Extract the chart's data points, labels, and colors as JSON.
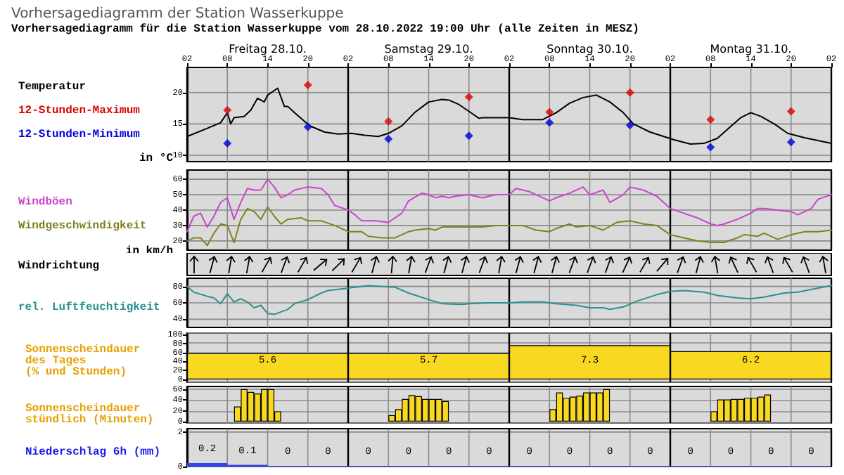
{
  "chart_data": [
    {
      "type": "line",
      "title": "Vorhersagediagramm der Station Wasserkuppe",
      "subtitle": "Vorhersagediagramm für die Station Wasserkuppe vom 28.10.2022 19:00 Uhr (alle Zeiten in MESZ)",
      "annotations": [
        "Freitag 28.10.",
        "Samstag 29.10.",
        "Sonntag 30.10.",
        "Montag 31.10."
      ],
      "ylabel": "in °C",
      "xlim": [
        "2022-10-28T02:00",
        "2022-11-01T02:00"
      ],
      "xticks": [
        {
          "value": "2022-10-28T02:00",
          "label": "02"
        },
        {
          "value": "2022-10-28T08:00",
          "label": "08"
        },
        {
          "value": "2022-10-28T14:00",
          "label": "14"
        },
        {
          "value": "2022-10-28T20:00",
          "label": "20"
        },
        {
          "value": "2022-10-29T02:00",
          "label": "02"
        },
        {
          "value": "2022-10-29T08:00",
          "label": "08"
        },
        {
          "value": "2022-10-29T14:00",
          "label": "14"
        },
        {
          "value": "2022-10-29T20:00",
          "label": "20"
        },
        {
          "value": "2022-10-30T02:00",
          "label": "02"
        },
        {
          "value": "2022-10-30T08:00",
          "label": "08"
        },
        {
          "value": "2022-10-30T14:00",
          "label": "14"
        },
        {
          "value": "2022-10-30T20:00",
          "label": "20"
        },
        {
          "value": "2022-10-31T02:00",
          "label": "02"
        },
        {
          "value": "2022-10-31T08:00",
          "label": "08"
        },
        {
          "value": "2022-10-31T14:00",
          "label": "14"
        },
        {
          "value": "2022-10-31T20:00",
          "label": "20"
        },
        {
          "value": "2022-11-01T02:00",
          "label": "02"
        }
      ],
      "ylim": [
        9,
        24
      ],
      "yticks": [
        10,
        15,
        20
      ],
      "grid": true,
      "legend": "left",
      "marker": "none",
      "line_style": "solid",
      "series": [
        {
          "name": "Temperatur",
          "color": "#000000",
          "x": [
            "2022-10-28T02:00",
            "2022-10-28T05:00",
            "2022-10-28T07:00",
            "2022-10-28T08:00",
            "2022-10-28T08:30",
            "2022-10-28T09:00",
            "2022-10-28T10:30",
            "2022-10-28T11:30",
            "2022-10-28T12:30",
            "2022-10-28T13:30",
            "2022-10-28T14:00",
            "2022-10-28T15:30",
            "2022-10-28T16:30",
            "2022-10-28T17:00",
            "2022-10-28T18:00",
            "2022-10-28T19:30",
            "2022-10-28T20:30",
            "2022-10-28T22:30",
            "2022-10-29T00:30",
            "2022-10-29T02:30",
            "2022-10-29T04:30",
            "2022-10-29T06:30",
            "2022-10-29T08:00",
            "2022-10-29T10:00",
            "2022-10-29T12:00",
            "2022-10-29T14:00",
            "2022-10-29T16:00",
            "2022-10-29T17:00",
            "2022-10-29T18:30",
            "2022-10-29T20:00",
            "2022-10-29T21:30",
            "2022-10-29T22:00",
            "2022-10-30T02:00",
            "2022-10-30T04:00",
            "2022-10-30T07:00",
            "2022-10-30T09:00",
            "2022-10-30T11:00",
            "2022-10-30T13:00",
            "2022-10-30T15:00",
            "2022-10-30T17:00",
            "2022-10-30T19:00",
            "2022-10-30T20:30",
            "2022-10-30T23:00",
            "2022-10-31T02:30",
            "2022-10-31T05:00",
            "2022-10-31T07:00",
            "2022-10-31T09:00",
            "2022-10-31T11:00",
            "2022-10-31T12:30",
            "2022-10-31T14:00",
            "2022-10-31T15:30",
            "2022-10-31T17:30",
            "2022-10-31T19:30",
            "2022-10-31T22:00",
            "2022-11-01T02:00"
          ],
          "values": [
            13.0,
            14.3,
            15.2,
            16.8,
            15.0,
            16.0,
            16.2,
            17.2,
            19.1,
            18.5,
            19.6,
            20.7,
            17.8,
            17.8,
            16.8,
            15.4,
            14.6,
            13.7,
            13.4,
            13.5,
            13.2,
            13.0,
            13.5,
            14.7,
            16.9,
            18.5,
            18.9,
            18.8,
            18.1,
            17.0,
            15.9,
            16.0,
            16.0,
            15.7,
            15.7,
            16.8,
            18.3,
            19.2,
            19.6,
            18.5,
            16.8,
            15.0,
            13.7,
            12.5,
            11.8,
            11.9,
            12.7,
            14.6,
            16.0,
            16.8,
            16.2,
            15.0,
            13.5,
            12.8,
            11.9
          ]
        },
        {
          "name": "12-Stunden-Maximum",
          "type": "scatter",
          "marker": "diamond",
          "color": "#dd0000",
          "x": [
            "2022-10-28T08:00",
            "2022-10-28T20:00",
            "2022-10-29T08:00",
            "2022-10-29T20:00",
            "2022-10-30T08:00",
            "2022-10-30T20:00",
            "2022-10-31T08:00",
            "2022-10-31T20:00"
          ],
          "values": [
            17.2,
            21.2,
            15.4,
            19.3,
            16.9,
            20.0,
            15.7,
            17.0
          ]
        },
        {
          "name": "12-Stunden-Minimum",
          "type": "scatter",
          "marker": "diamond",
          "color": "#0000dd",
          "x": [
            "2022-10-28T08:00",
            "2022-10-28T20:00",
            "2022-10-29T08:00",
            "2022-10-29T20:00",
            "2022-10-30T08:00",
            "2022-10-30T20:00",
            "2022-10-31T08:00",
            "2022-10-31T20:00"
          ],
          "values": [
            11.9,
            14.5,
            12.6,
            13.1,
            15.2,
            14.8,
            11.3,
            12.1
          ]
        }
      ]
    },
    {
      "type": "line",
      "ylabel": "in km/h",
      "xlim": [
        "2022-10-28T02:00",
        "2022-11-01T02:00"
      ],
      "xticks": [
        "2022-10-28T02:00",
        "2022-10-28T08:00",
        "2022-10-28T14:00",
        "2022-10-28T20:00",
        "2022-10-29T02:00",
        "2022-10-29T08:00",
        "2022-10-29T14:00",
        "2022-10-29T20:00",
        "2022-10-30T02:00",
        "2022-10-30T08:00",
        "2022-10-30T14:00",
        "2022-10-30T20:00",
        "2022-10-31T02:00",
        "2022-10-31T08:00",
        "2022-10-31T14:00",
        "2022-10-31T20:00",
        "2022-11-01T02:00"
      ],
      "ylim": [
        14,
        66
      ],
      "yticks": [
        20,
        30,
        40,
        50,
        60
      ],
      "grid": true,
      "legend": "left",
      "marker": "none",
      "tick_labels": "y",
      "series": [
        {
          "name": "Windböen",
          "color": "#cc44cc",
          "x": [
            "2022-10-28T02:00",
            "2022-10-28T03:00",
            "2022-10-28T04:00",
            "2022-10-28T05:00",
            "2022-10-28T06:00",
            "2022-10-28T07:00",
            "2022-10-28T08:00",
            "2022-10-28T09:00",
            "2022-10-28T10:00",
            "2022-10-28T11:00",
            "2022-10-28T12:00",
            "2022-10-28T13:00",
            "2022-10-28T14:00",
            "2022-10-28T15:00",
            "2022-10-28T16:00",
            "2022-10-28T17:00",
            "2022-10-28T18:00",
            "2022-10-28T20:00",
            "2022-10-28T22:00",
            "2022-10-28T23:00",
            "2022-10-29T00:00",
            "2022-10-29T02:00",
            "2022-10-29T03:00",
            "2022-10-29T04:00",
            "2022-10-29T06:00",
            "2022-10-29T08:00",
            "2022-10-29T10:00",
            "2022-10-29T11:00",
            "2022-10-29T13:00",
            "2022-10-29T14:00",
            "2022-10-29T15:00",
            "2022-10-29T16:00",
            "2022-10-29T17:00",
            "2022-10-29T18:00",
            "2022-10-29T20:00",
            "2022-10-29T22:00",
            "2022-10-30T00:00",
            "2022-10-30T02:00",
            "2022-10-30T03:00",
            "2022-10-30T05:00",
            "2022-10-30T07:00",
            "2022-10-30T08:00",
            "2022-10-30T09:00",
            "2022-10-30T11:00",
            "2022-10-30T13:00",
            "2022-10-30T14:00",
            "2022-10-30T16:00",
            "2022-10-30T17:00",
            "2022-10-30T19:00",
            "2022-10-30T20:00",
            "2022-10-30T22:00",
            "2022-10-30T23:00",
            "2022-10-31T00:00",
            "2022-10-31T02:00",
            "2022-10-31T04:00",
            "2022-10-31T06:00",
            "2022-10-31T08:00",
            "2022-10-31T09:00",
            "2022-10-31T10:00",
            "2022-10-31T12:00",
            "2022-10-31T14:00",
            "2022-10-31T15:00",
            "2022-10-31T16:00",
            "2022-10-31T18:00",
            "2022-10-31T20:00",
            "2022-10-31T21:00",
            "2022-10-31T23:00",
            "2022-11-01T00:00",
            "2022-11-01T02:00"
          ],
          "values": [
            26,
            36,
            38,
            29,
            36,
            45,
            48,
            34,
            45,
            54,
            53,
            53,
            60,
            55,
            48,
            50,
            53,
            55,
            54,
            50,
            43,
            40,
            37,
            33,
            33,
            32,
            38,
            46,
            51,
            50,
            48,
            49,
            48,
            49,
            50,
            48,
            50,
            50,
            54,
            52,
            48,
            46,
            48,
            51,
            55,
            50,
            53,
            45,
            50,
            55,
            53,
            51,
            49,
            41,
            38,
            35,
            31,
            30,
            31,
            34,
            38,
            41,
            41,
            40,
            39,
            37,
            41,
            47,
            50
          ]
        },
        {
          "name": "Windgeschwindigkeit",
          "color": "#808020",
          "x": [
            "2022-10-28T02:00",
            "2022-10-28T03:00",
            "2022-10-28T04:00",
            "2022-10-28T05:00",
            "2022-10-28T06:00",
            "2022-10-28T07:00",
            "2022-10-28T08:00",
            "2022-10-28T09:00",
            "2022-10-28T10:00",
            "2022-10-28T11:00",
            "2022-10-28T12:00",
            "2022-10-28T13:00",
            "2022-10-28T14:00",
            "2022-10-28T15:00",
            "2022-10-28T16:00",
            "2022-10-28T17:00",
            "2022-10-28T19:00",
            "2022-10-28T20:00",
            "2022-10-28T22:00",
            "2022-10-29T00:00",
            "2022-10-29T02:00",
            "2022-10-29T04:00",
            "2022-10-29T05:00",
            "2022-10-29T07:00",
            "2022-10-29T09:00",
            "2022-10-29T11:00",
            "2022-10-29T12:00",
            "2022-10-29T14:00",
            "2022-10-29T15:00",
            "2022-10-29T16:00",
            "2022-10-29T19:00",
            "2022-10-29T22:00",
            "2022-10-30T00:00",
            "2022-10-30T04:00",
            "2022-10-30T06:00",
            "2022-10-30T08:00",
            "2022-10-30T09:00",
            "2022-10-30T11:00",
            "2022-10-30T12:00",
            "2022-10-30T14:00",
            "2022-10-30T16:00",
            "2022-10-30T18:00",
            "2022-10-30T20:00",
            "2022-10-30T22:00",
            "2022-10-31T00:00",
            "2022-10-31T02:00",
            "2022-10-31T04:00",
            "2022-10-31T06:00",
            "2022-10-31T08:00",
            "2022-10-31T10:00",
            "2022-10-31T12:00",
            "2022-10-31T13:00",
            "2022-10-31T15:00",
            "2022-10-31T16:00",
            "2022-10-31T18:00",
            "2022-10-31T20:00",
            "2022-10-31T22:00",
            "2022-11-01T00:00",
            "2022-11-01T02:00"
          ],
          "values": [
            20,
            22,
            22,
            17,
            25,
            31,
            30,
            19,
            34,
            41,
            39,
            34,
            42,
            36,
            31,
            34,
            35,
            33,
            33,
            30,
            26,
            26,
            23,
            22,
            22,
            26,
            27,
            28,
            27,
            29,
            29,
            29,
            30,
            30,
            27,
            26,
            28,
            31,
            29,
            30,
            27,
            32,
            33,
            31,
            30,
            24,
            22,
            20,
            19,
            19,
            22,
            24,
            23,
            25,
            21,
            24,
            26,
            26,
            27
          ]
        }
      ]
    },
    {
      "type": "other",
      "title": "Windrichtung"
    },
    {
      "type": "line",
      "xlim": [
        "2022-10-28T02:00",
        "2022-11-01T02:00"
      ],
      "xticks": [
        "2022-10-28T02:00",
        "2022-10-28T08:00",
        "2022-10-28T14:00",
        "2022-10-28T20:00",
        "2022-10-29T02:00",
        "2022-10-29T08:00",
        "2022-10-29T14:00",
        "2022-10-29T20:00",
        "2022-10-30T02:00",
        "2022-10-30T08:00",
        "2022-10-30T14:00",
        "2022-10-30T20:00",
        "2022-10-31T02:00",
        "2022-10-31T08:00",
        "2022-10-31T14:00",
        "2022-10-31T20:00",
        "2022-11-01T02:00"
      ],
      "ylim": [
        30,
        90
      ],
      "yticks": [
        40,
        60,
        80
      ],
      "grid": true,
      "legend": "left",
      "marker": "none",
      "tick_labels": "y",
      "series": [
        {
          "name": "rel. Luftfeuchtigkeit",
          "color": "#2a9090",
          "x": [
            "2022-10-28T02:00",
            "2022-10-28T03:00",
            "2022-10-28T05:00",
            "2022-10-28T06:00",
            "2022-10-28T07:00",
            "2022-10-28T08:00",
            "2022-10-28T09:00",
            "2022-10-28T10:00",
            "2022-10-28T11:00",
            "2022-10-28T12:00",
            "2022-10-28T13:00",
            "2022-10-28T14:00",
            "2022-10-28T15:00",
            "2022-10-28T17:00",
            "2022-10-28T18:00",
            "2022-10-28T20:00",
            "2022-10-28T22:00",
            "2022-10-28T23:00",
            "2022-10-29T01:00",
            "2022-10-29T03:00",
            "2022-10-29T05:00",
            "2022-10-29T07:00",
            "2022-10-29T09:00",
            "2022-10-29T11:00",
            "2022-10-29T14:00",
            "2022-10-29T16:00",
            "2022-10-29T19:00",
            "2022-10-29T20:00",
            "2022-10-29T23:00",
            "2022-10-30T02:00",
            "2022-10-30T04:00",
            "2022-10-30T07:00",
            "2022-10-30T09:00",
            "2022-10-30T12:00",
            "2022-10-30T14:00",
            "2022-10-30T16:00",
            "2022-10-30T17:00",
            "2022-10-30T19:00",
            "2022-10-30T21:00",
            "2022-10-31T00:00",
            "2022-10-31T02:00",
            "2022-10-31T04:00",
            "2022-10-31T07:00",
            "2022-10-31T09:00",
            "2022-10-31T12:00",
            "2022-10-31T14:00",
            "2022-10-31T16:00",
            "2022-10-31T19:00",
            "2022-10-31T21:00",
            "2022-11-01T00:00",
            "2022-11-01T02:00"
          ],
          "values": [
            80,
            73,
            68,
            66,
            59,
            71,
            61,
            65,
            61,
            54,
            57,
            47,
            46,
            52,
            59,
            64,
            72,
            75,
            77,
            79,
            81,
            80,
            79,
            72,
            64,
            59,
            58,
            59,
            60,
            60,
            61,
            61,
            59,
            57,
            54,
            54,
            52,
            55,
            62,
            70,
            74,
            75,
            73,
            69,
            66,
            65,
            67,
            72,
            73,
            78,
            81
          ]
        }
      ]
    },
    {
      "type": "bar",
      "title": "Sonnenscheindauer\ndes Tages\n(% und Stunden)",
      "xlim": [
        "2022-10-28T02:00",
        "2022-11-01T02:00"
      ],
      "xticks": [
        "2022-10-28T02:00",
        "2022-10-28T08:00",
        "2022-10-28T14:00",
        "2022-10-28T20:00",
        "2022-10-29T02:00",
        "2022-10-29T08:00",
        "2022-10-29T14:00",
        "2022-10-29T20:00",
        "2022-10-30T02:00",
        "2022-10-30T08:00",
        "2022-10-30T14:00",
        "2022-10-30T20:00",
        "2022-10-31T02:00",
        "2022-10-31T08:00",
        "2022-10-31T14:00",
        "2022-10-31T20:00",
        "2022-11-01T02:00"
      ],
      "ylim": [
        0,
        100
      ],
      "yticks": [
        0,
        20,
        40,
        60,
        80,
        100
      ],
      "grid": true,
      "tick_labels": "y",
      "x": [
        "2022-10-28T14:00",
        "2022-10-29T14:00",
        "2022-10-30T14:00",
        "2022-10-31T14:00"
      ],
      "values": [
        58,
        58,
        76,
        63
      ],
      "color": "#f8d820",
      "annotations": [
        "5.6",
        "5.7",
        "7.3",
        "6.2"
      ]
    },
    {
      "type": "bar",
      "title": "Sonnenscheindauer\nstündlich (Minuten)",
      "xlim": [
        "2022-10-28T02:00",
        "2022-11-01T02:00"
      ],
      "xticks": [
        "2022-10-28T02:00",
        "2022-10-28T08:00",
        "2022-10-28T14:00",
        "2022-10-28T20:00",
        "2022-10-29T02:00",
        "2022-10-29T08:00",
        "2022-10-29T14:00",
        "2022-10-29T20:00",
        "2022-10-30T02:00",
        "2022-10-30T08:00",
        "2022-10-30T14:00",
        "2022-10-30T20:00",
        "2022-10-31T02:00",
        "2022-10-31T08:00",
        "2022-10-31T14:00",
        "2022-10-31T20:00",
        "2022-11-01T02:00"
      ],
      "ylim": [
        0,
        65
      ],
      "yticks": [
        0,
        20,
        40,
        60
      ],
      "grid": true,
      "tick_labels": "y",
      "color": "#f8d820",
      "x": [
        "2022-10-28T09:30",
        "2022-10-28T10:30",
        "2022-10-28T11:30",
        "2022-10-28T12:30",
        "2022-10-28T13:30",
        "2022-10-28T14:30",
        "2022-10-28T15:30",
        "2022-10-29T08:30",
        "2022-10-29T09:30",
        "2022-10-29T10:30",
        "2022-10-29T11:30",
        "2022-10-29T12:30",
        "2022-10-29T13:30",
        "2022-10-29T14:30",
        "2022-10-29T15:30",
        "2022-10-29T16:30",
        "2022-10-30T08:30",
        "2022-10-30T09:30",
        "2022-10-30T10:30",
        "2022-10-30T11:30",
        "2022-10-30T12:30",
        "2022-10-30T13:30",
        "2022-10-30T14:30",
        "2022-10-30T15:30",
        "2022-10-30T16:30",
        "2022-10-31T08:30",
        "2022-10-31T09:30",
        "2022-10-31T10:30",
        "2022-10-31T11:30",
        "2022-10-31T12:30",
        "2022-10-31T13:30",
        "2022-10-31T14:30",
        "2022-10-31T15:30",
        "2022-10-31T16:30"
      ],
      "values": [
        28,
        60,
        55,
        52,
        60,
        60,
        19,
        12,
        23,
        42,
        49,
        47,
        42,
        42,
        42,
        38,
        23,
        54,
        44,
        46,
        48,
        54,
        54,
        54,
        60,
        19,
        41,
        41,
        42,
        42,
        44,
        44,
        46,
        50
      ]
    },
    {
      "type": "bar",
      "title": "Niederschlag 6h (mm)",
      "xlim": [
        "2022-10-28T02:00",
        "2022-11-01T02:00"
      ],
      "xticks": [
        "2022-10-28T02:00",
        "2022-10-28T08:00",
        "2022-10-28T14:00",
        "2022-10-28T20:00",
        "2022-10-29T02:00",
        "2022-10-29T08:00",
        "2022-10-29T14:00",
        "2022-10-29T20:00",
        "2022-10-30T02:00",
        "2022-10-30T08:00",
        "2022-10-30T14:00",
        "2022-10-30T20:00",
        "2022-10-31T02:00",
        "2022-10-31T08:00",
        "2022-10-31T14:00",
        "2022-10-31T20:00",
        "2022-11-01T02:00"
      ],
      "ylim": [
        0,
        2.2
      ],
      "yticks": [
        0,
        2
      ],
      "grid": true,
      "tick_labels": "y",
      "data_labels": true,
      "color": "#3344ee",
      "x": [
        "2022-10-28T05:00",
        "2022-10-28T11:00",
        "2022-10-28T17:00",
        "2022-10-28T23:00",
        "2022-10-29T05:00",
        "2022-10-29T11:00",
        "2022-10-29T17:00",
        "2022-10-29T23:00",
        "2022-10-30T05:00",
        "2022-10-30T11:00",
        "2022-10-30T17:00",
        "2022-10-30T23:00",
        "2022-10-31T05:00",
        "2022-10-31T11:00",
        "2022-10-31T17:00",
        "2022-10-31T23:00"
      ],
      "values": [
        0.2,
        0.1,
        0,
        0,
        0,
        0,
        0,
        0,
        0,
        0,
        0,
        0,
        0,
        0,
        0,
        0
      ]
    }
  ]
}
